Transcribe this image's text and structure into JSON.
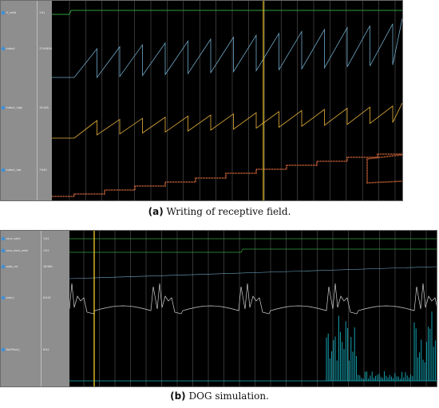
{
  "panel_a": {
    "signals": [
      {
        "name": "rf_valid",
        "value": "1'd1"
      },
      {
        "name": "index1",
        "value": "17'd3634"
      },
      {
        "name": "index1_high",
        "value": "10'd28"
      },
      {
        "name": "index1_low",
        "value": "7'd50"
      }
    ],
    "caption": {
      "tag": "(a)",
      "text": "Writing of receptive field."
    }
  },
  "panel_b": {
    "signals": [
      {
        "name": "conv_valid",
        "value": "1'd1"
      },
      {
        "name": "conv_dout_valid",
        "value": "1'd1"
      },
      {
        "name": "addr_cnt",
        "value": "16'd80"
      },
      {
        "name": "pixel_i",
        "value": "8'd19"
      },
      {
        "name": "DoGPixel_i",
        "value": "8'd1"
      }
    ],
    "caption": {
      "tag": "(b)",
      "text": "DOG simulation."
    }
  },
  "colors": {
    "background": "#000000",
    "name_panel": "#8e8e8e",
    "marker_cursor": "#f2cc2a",
    "valid_trace": "#2f9e3a",
    "index_trace": "#6fa8c7",
    "high_trace": "#e8b23a",
    "low_trace": "#d8683a",
    "pixel_trace": "#cfcfcf",
    "dog_trace": "#17b3c2",
    "grid": "#d8d8d8"
  }
}
